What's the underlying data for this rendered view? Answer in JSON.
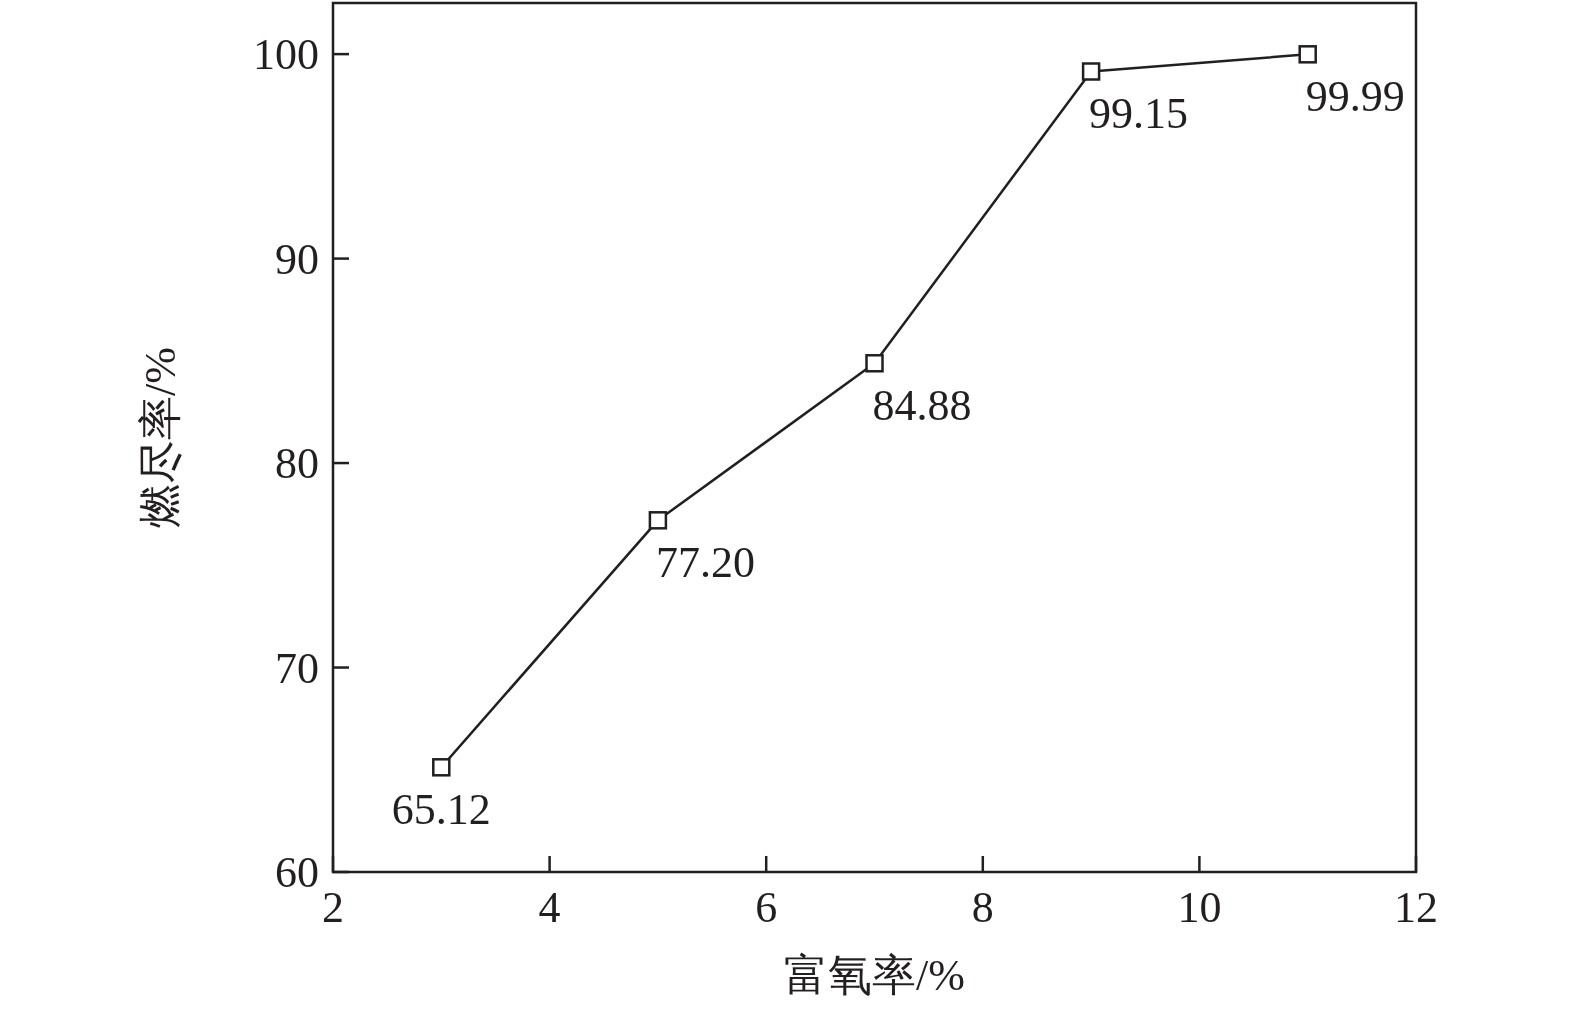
{
  "chart_data": {
    "type": "line",
    "xlabel": "富氧率/%",
    "ylabel": "燃尽率/%",
    "x": [
      3,
      5,
      7,
      9,
      11
    ],
    "series": [
      {
        "color": "#231f20",
        "values": [
          65.12,
          77.2,
          84.88,
          99.15,
          99.99
        ],
        "value_labels": [
          "65.12",
          "77.20",
          "84.88",
          "99.15",
          "99.99"
        ]
      }
    ],
    "xlim": [
      2,
      12
    ],
    "xticks": [
      2,
      4,
      6,
      8,
      10,
      12
    ],
    "ylim": [
      60,
      102.5
    ],
    "yticks": [
      60,
      70,
      80,
      90,
      100
    ],
    "marker": "square",
    "line_style": "solid",
    "grid": false
  }
}
